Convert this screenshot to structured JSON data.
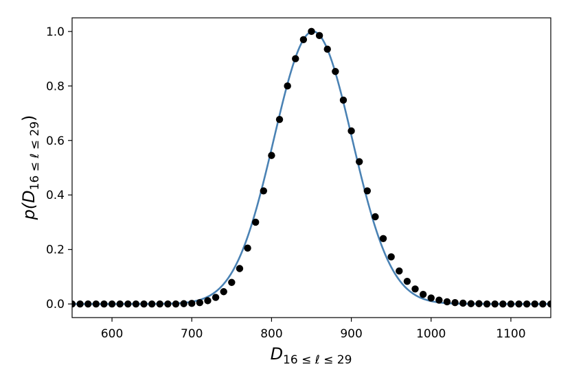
{
  "chart_data": {
    "type": "scatter",
    "xlabel": {
      "base": "D",
      "sub": "16 ≤ ℓ ≤ 29"
    },
    "ylabel": {
      "base": "p(D",
      "sub": "16 ≤ ℓ ≤ 29",
      "close": ")"
    },
    "xlim": [
      550,
      1150
    ],
    "ylim": [
      -0.05,
      1.05
    ],
    "xticks": [
      600,
      700,
      800,
      900,
      1000,
      1100
    ],
    "xtick_labels": [
      "600",
      "700",
      "800",
      "900",
      "1000",
      "1100"
    ],
    "yticks": [
      0.0,
      0.2,
      0.4,
      0.6,
      0.8,
      1.0
    ],
    "ytick_labels": [
      "0.0",
      "0.2",
      "0.4",
      "0.6",
      "0.8",
      "1.0"
    ],
    "grid": false,
    "series": [
      {
        "kind": "points",
        "color": "#000000",
        "x": [
          550,
          560,
          570,
          580,
          590,
          600,
          610,
          620,
          630,
          640,
          650,
          660,
          670,
          680,
          690,
          700,
          710,
          720,
          730,
          740,
          750,
          760,
          770,
          780,
          790,
          800,
          810,
          820,
          830,
          840,
          850,
          860,
          870,
          880,
          890,
          900,
          910,
          920,
          930,
          940,
          950,
          960,
          970,
          980,
          990,
          1000,
          1010,
          1020,
          1030,
          1040,
          1050,
          1060,
          1070,
          1080,
          1090,
          1100,
          1110,
          1120,
          1130,
          1140,
          1150
        ],
        "y": [
          0.0,
          0.0,
          0.0,
          0.0,
          0.0,
          0.0,
          0.0,
          0.0,
          0.0,
          0.0,
          0.0,
          0.0,
          0.0,
          0.0,
          0.001,
          0.002,
          0.005,
          0.012,
          0.024,
          0.045,
          0.079,
          0.13,
          0.205,
          0.3,
          0.415,
          0.545,
          0.677,
          0.8,
          0.9,
          0.97,
          1.0,
          0.985,
          0.935,
          0.853,
          0.748,
          0.635,
          0.522,
          0.415,
          0.32,
          0.24,
          0.173,
          0.121,
          0.083,
          0.055,
          0.035,
          0.022,
          0.014,
          0.008,
          0.005,
          0.003,
          0.001,
          0.001,
          0.0,
          0.0,
          0.0,
          0.0,
          0.0,
          0.0,
          0.0,
          0.0,
          0.0
        ]
      },
      {
        "kind": "line",
        "color": "#4a82b4",
        "model": "gaussian",
        "mean": 852,
        "sigma": 49,
        "amplitude": 1.0
      }
    ]
  }
}
